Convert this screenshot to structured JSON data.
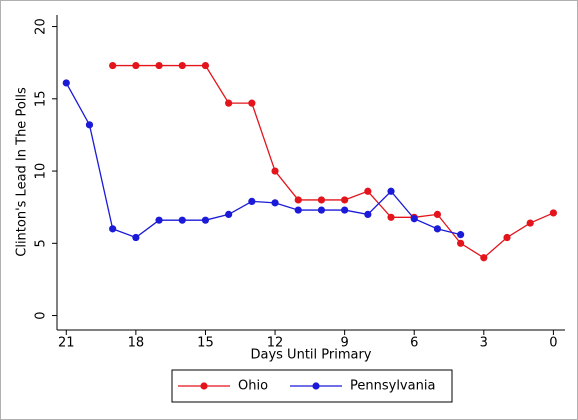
{
  "chart_data": {
    "type": "line",
    "x_label": "Days Until Primary",
    "y_label": "Clinton's Lead In The Polls",
    "xlim": [
      21.4,
      -0.5
    ],
    "ylim": [
      -1,
      20.8
    ],
    "xticks": [
      21,
      18,
      15,
      12,
      9,
      6,
      3,
      0
    ],
    "yticks": [
      0,
      5,
      10,
      15,
      20
    ],
    "legend": "bottom",
    "series": [
      {
        "name": "Ohio",
        "color": "#e3141c",
        "x": [
          19,
          18,
          17,
          16,
          15,
          14,
          13,
          12,
          11,
          10,
          9,
          8,
          7,
          6,
          5,
          4,
          3,
          2,
          1,
          0
        ],
        "values": [
          17.3,
          17.3,
          17.3,
          17.3,
          17.3,
          14.7,
          14.7,
          10,
          8,
          8,
          8,
          8.6,
          6.8,
          6.8,
          7,
          5,
          4,
          5.4,
          6.4,
          7.1
        ]
      },
      {
        "name": "Pennsylvania",
        "color": "#1a1ad8",
        "x": [
          21,
          20,
          19,
          18,
          17,
          16,
          15,
          14,
          13,
          12,
          11,
          10,
          9,
          8,
          7,
          6,
          5,
          4
        ],
        "values": [
          16.1,
          13.2,
          6,
          5.4,
          6.6,
          6.6,
          6.6,
          7,
          7.9,
          7.8,
          7.3,
          7.3,
          7.3,
          7,
          8.6,
          6.7,
          6,
          5.6
        ]
      }
    ]
  }
}
